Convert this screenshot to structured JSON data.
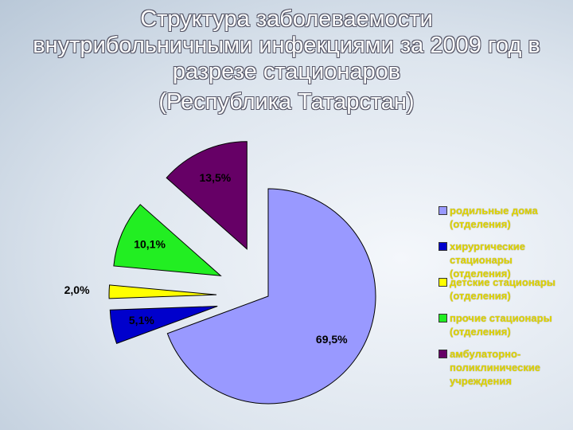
{
  "chart_data": {
    "type": "pie",
    "title": "Структура заболеваемости внутрибольничными инфекциями за 2009 год в разрезе стационаров",
    "subtitle": "(Республика Татарстан)",
    "categories": [
      "родильные дома (отделения)",
      "хирургические стационары (отделения)",
      "детские стационары (отделения)",
      "прочие стационары (отделения)",
      "амбулаторно-поликлинические учреждения"
    ],
    "values": [
      69.5,
      5.1,
      2.0,
      10.1,
      13.5
    ],
    "value_labels": [
      "69,5%",
      "5,1%",
      "2,0%",
      "10,1%",
      "13,5%"
    ],
    "colors": [
      "#9999ff",
      "#0000cc",
      "#ffff00",
      "#22ee22",
      "#660066"
    ]
  }
}
